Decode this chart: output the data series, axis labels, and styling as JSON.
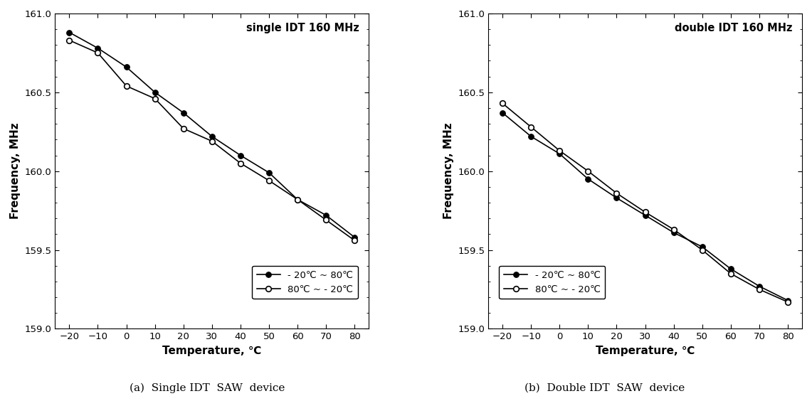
{
  "temperature": [
    -20,
    -10,
    0,
    10,
    20,
    30,
    40,
    50,
    60,
    70,
    80
  ],
  "single_heat": [
    160.88,
    160.78,
    160.66,
    160.5,
    160.37,
    160.22,
    160.1,
    159.99,
    159.82,
    159.72,
    159.58
  ],
  "single_cool": [
    160.83,
    160.75,
    160.54,
    160.46,
    160.27,
    160.19,
    160.05,
    159.94,
    159.82,
    159.69,
    159.56
  ],
  "double_heat": [
    160.37,
    160.22,
    160.11,
    159.95,
    159.83,
    159.72,
    159.61,
    159.52,
    159.38,
    159.27,
    159.18
  ],
  "double_cool": [
    160.43,
    160.28,
    160.13,
    160.0,
    159.86,
    159.74,
    159.63,
    159.5,
    159.35,
    159.25,
    159.17
  ],
  "single_title": "single IDT 160 MHz",
  "double_title": "double IDT 160 MHz",
  "xlabel": "Temperature, ℃",
  "ylabel": "Frequency, MHz",
  "legend_heat": "- 20℃ ~ 80℃",
  "legend_cool": "80℃ ~ - 20℃",
  "ylim": [
    159.0,
    161.0
  ],
  "xlim": [
    -25,
    85
  ],
  "yticks": [
    159.0,
    159.5,
    160.0,
    160.5,
    161.0
  ],
  "xticks": [
    -20,
    -10,
    0,
    10,
    20,
    30,
    40,
    50,
    60,
    70,
    80
  ],
  "caption_a": "(a)  Single IDT  SAW  device",
  "caption_b": "(b)  Double IDT  SAW  device",
  "bg_color": "#ffffff",
  "line_color": "#000000",
  "marker_fill": "#000000",
  "marker_open": "#ffffff"
}
